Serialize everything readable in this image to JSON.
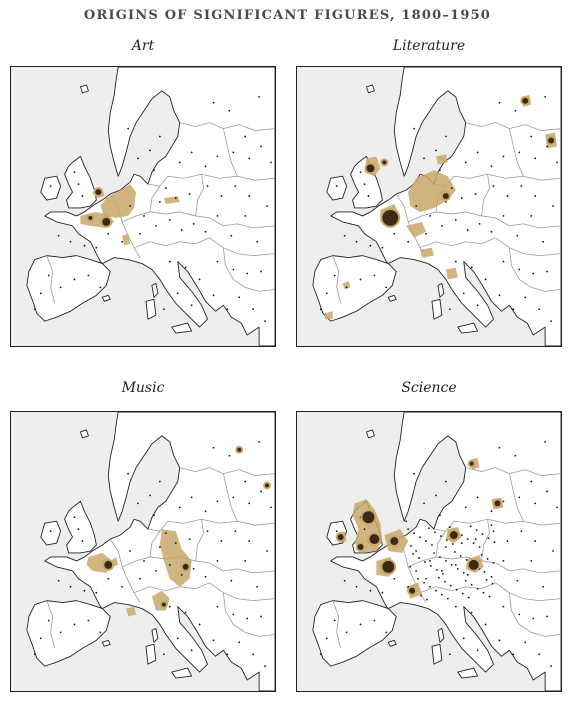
{
  "title": "ORIGINS OF SIGNIFICANT FIGURES, 1800–1950",
  "colors": {
    "cluster": "#c9a86a",
    "core": "#3b2a18",
    "sea": "#eeeeee",
    "land": "#ffffff",
    "border": "#9a9a9a",
    "coast": "#222222"
  },
  "panels": [
    {
      "name": "Art",
      "label": "Art"
    },
    {
      "name": "Literature",
      "label": "Literature"
    },
    {
      "name": "Music",
      "label": "Music"
    },
    {
      "name": "Science",
      "label": "Science"
    }
  ]
}
